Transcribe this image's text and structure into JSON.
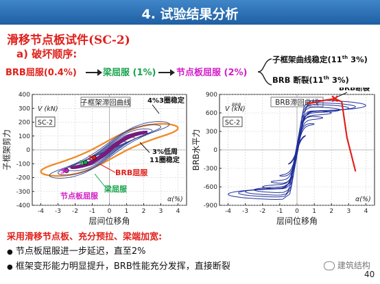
{
  "header": {
    "title": "4. 试验结果分析"
  },
  "section": {
    "title": "滑移节点板试件(SC-2)",
    "subtitle": "a) 破坏顺序:"
  },
  "sequence": {
    "step1": "BRB屈服(0.4%)",
    "step2": "梁屈服 (1%)",
    "step3": "节点板屈服 (2%)",
    "branch_top": "子框架曲线稳定(11",
    "branch_top_sup": "th",
    "branch_top_end": " 3%)",
    "branch_bottom": "BRB 断裂(11",
    "branch_bottom_sup": "th",
    "branch_bottom_end": " 3%)"
  },
  "colors": {
    "red": "#e0201a",
    "green": "#16a34a",
    "magenta": "#d21dc8",
    "banner": "#2a6db5"
  },
  "chart_data": [
    {
      "type": "line",
      "title": "子框架滞回曲线",
      "tag": "SC-2",
      "ylabel": "子框架剪力",
      "yunit": "V (kN)",
      "xlabel": "层间位移角",
      "xunit": "α(%)",
      "xlim": [
        -4.5,
        4.5
      ],
      "ylim": [
        -400,
        400
      ],
      "xticks": [
        "-4",
        "-3",
        "-2",
        "-1",
        "0",
        "1",
        "2",
        "3",
        "4"
      ],
      "yticks": [
        "400",
        "300",
        "200",
        "100",
        "0",
        "-100",
        "-200",
        "-300",
        "-400"
      ],
      "annotations": [
        "4%3圈稳定",
        "3%低周\n11圈稳定",
        "BRB屈服",
        "梁屈服",
        "节点板屈服"
      ],
      "markers": [
        "1",
        "2",
        "3"
      ]
    },
    {
      "type": "line",
      "title": "BRB滞回曲线",
      "tag": "SC-2",
      "ylabel": "BRB水平力",
      "yunit": "V (kN)",
      "yunit_sub": "BRB",
      "xlabel": "层间位移角",
      "xunit": "α(%)",
      "xlim": [
        -4.5,
        4.5
      ],
      "ylim": [
        -900,
        900
      ],
      "xticks": [
        "-4",
        "-3",
        "-2",
        "-1",
        "0",
        "1",
        "2",
        "3",
        "4"
      ],
      "yticks": [
        "900",
        "600",
        "300",
        "0",
        "-300",
        "-600",
        "-900"
      ],
      "annotations": [
        "BRB断裂"
      ]
    }
  ],
  "conclusion": {
    "title": "采用滑移节点板、充分预拉、梁端加宽:",
    "bullets": [
      "节点板屈服进一步延迟，直至2%",
      "框架变形能力明显提升，BRB性能充分发挥，直接断裂"
    ]
  },
  "footer": {
    "logo_text": "建筑结构",
    "page_number": "40"
  }
}
